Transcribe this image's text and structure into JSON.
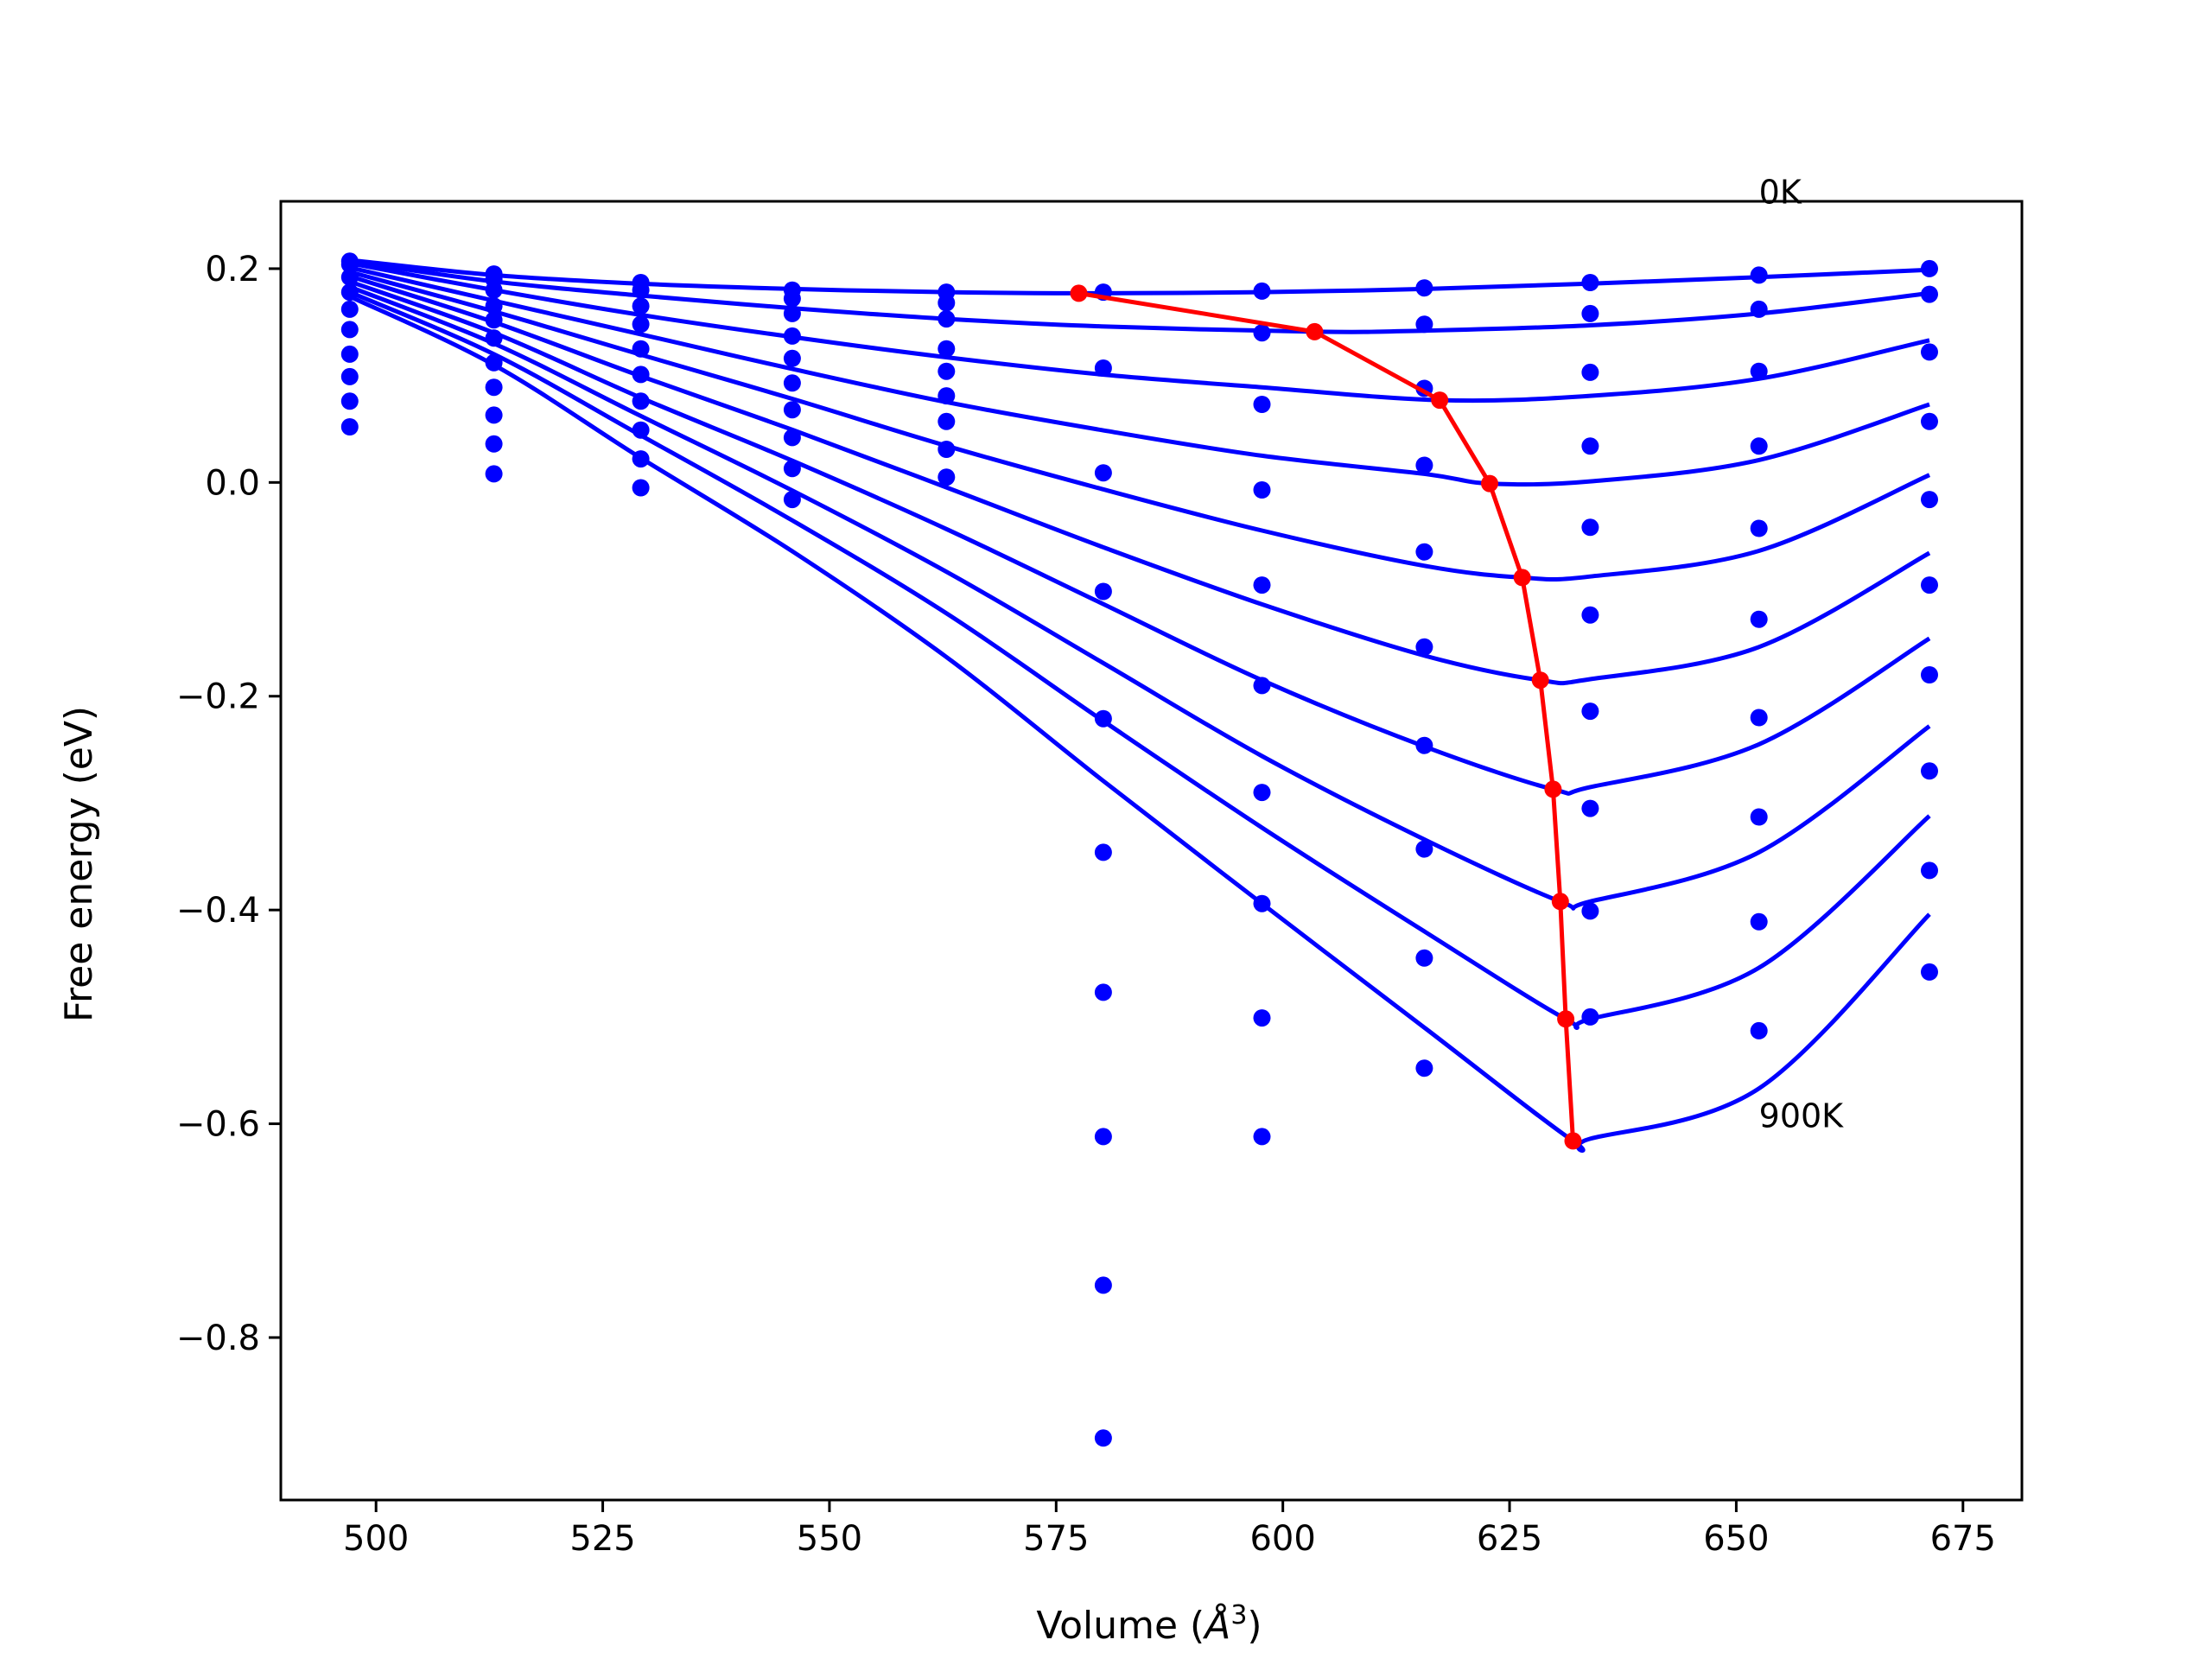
{
  "chart_data": {
    "type": "scatter",
    "title": "",
    "xlabel_prefix": "Volume (",
    "xlabel_symbol": "Å",
    "xlabel_exponent": "3",
    "xlabel_suffix": ")",
    "ylabel": "Free energy (eV)",
    "xlim": [
      489.5,
      681.5
    ],
    "ylim": [
      -0.952,
      0.263
    ],
    "xticks": [
      500,
      525,
      550,
      575,
      600,
      625,
      650,
      675
    ],
    "xtick_labels": [
      "500",
      "525",
      "550",
      "575",
      "600",
      "625",
      "650",
      "675"
    ],
    "yticks": [
      0.2,
      0.0,
      -0.2,
      -0.4,
      -0.6,
      -0.8
    ],
    "ytick_labels": [
      "0.2",
      "0.0",
      "−0.2",
      "−0.4",
      "−0.6",
      "−0.8"
    ],
    "grid": false,
    "annotations": [
      {
        "text": "0K",
        "x": 652.5,
        "y": 0.261
      },
      {
        "text": "900K",
        "x": 652.5,
        "y": -0.603
      }
    ],
    "colors": {
      "fit": "#0000ff",
      "points": "#0000ff",
      "minima": "#ff0000",
      "axes": "#000000"
    },
    "volumes": [
      497.1,
      513.0,
      529.2,
      545.9,
      562.9,
      580.2,
      597.7,
      615.6,
      633.9,
      652.5,
      671.3
    ],
    "point_series": [
      {
        "values": [
          0.207,
          0.195,
          0.187,
          0.18,
          0.178,
          0.178,
          0.179,
          0.182,
          0.187,
          0.194,
          0.2
        ]
      },
      {
        "values": [
          0.204,
          0.19,
          0.18,
          0.172,
          0.168,
          null,
          0.14,
          0.148,
          0.158,
          0.162,
          0.176
        ]
      },
      {
        "values": [
          0.192,
          0.18,
          0.165,
          0.158,
          0.153,
          0.107,
          0.073,
          0.088,
          0.103,
          0.104,
          0.122
        ]
      },
      {
        "values": [
          0.178,
          0.165,
          0.148,
          0.137,
          0.125,
          0.009,
          -0.007,
          0.016,
          0.034,
          0.034,
          0.057
        ]
      },
      {
        "values": [
          0.162,
          0.152,
          0.125,
          0.116,
          0.104,
          -0.102,
          -0.096,
          -0.065,
          -0.042,
          -0.043,
          -0.016
        ]
      },
      {
        "values": [
          0.143,
          0.135,
          0.101,
          0.093,
          0.081,
          -0.221,
          -0.19,
          -0.154,
          -0.124,
          -0.128,
          -0.096
        ]
      },
      {
        "values": [
          0.12,
          0.112,
          0.076,
          0.068,
          0.057,
          -0.346,
          -0.29,
          -0.246,
          -0.214,
          -0.22,
          -0.18
        ]
      },
      {
        "values": [
          0.099,
          0.089,
          0.049,
          0.042,
          0.031,
          -0.477,
          -0.394,
          -0.343,
          -0.305,
          -0.313,
          -0.27
        ]
      },
      {
        "values": [
          0.076,
          0.063,
          0.022,
          0.013,
          0.005,
          -0.612,
          -0.501,
          -0.445,
          -0.401,
          -0.411,
          -0.363
        ]
      },
      {
        "values": [
          0.052,
          0.036,
          -0.005,
          -0.016,
          null,
          -0.751,
          -0.612,
          -0.548,
          -0.5,
          -0.513,
          -0.458
        ]
      },
      {
        "values": [
          null,
          0.008,
          null,
          null,
          null,
          -0.894,
          null,
          null,
          null,
          null,
          null
        ]
      }
    ],
    "fit_series": [
      {
        "name": "0K",
        "points": [
          [
            497.1,
            0.208
          ],
          [
            513,
            0.194
          ],
          [
            529,
            0.186
          ],
          [
            546,
            0.181
          ],
          [
            563,
            0.178
          ],
          [
            577.5,
            0.177
          ],
          [
            597.7,
            0.178
          ],
          [
            615.6,
            0.181
          ],
          [
            633.9,
            0.186
          ],
          [
            652.5,
            0.192
          ],
          [
            671.3,
            0.199
          ]
        ]
      },
      {
        "name": "",
        "points": [
          [
            497.1,
            0.207
          ],
          [
            513,
            0.188
          ],
          [
            529,
            0.175
          ],
          [
            546,
            0.163
          ],
          [
            563,
            0.153
          ],
          [
            580,
            0.146
          ],
          [
            603.5,
            0.141
          ],
          [
            615.6,
            0.142
          ],
          [
            633.9,
            0.147
          ],
          [
            652.5,
            0.158
          ],
          [
            671.3,
            0.177
          ]
        ]
      },
      {
        "name": "",
        "points": [
          [
            497.1,
            0.205
          ],
          [
            513,
            0.18
          ],
          [
            529,
            0.157
          ],
          [
            546,
            0.136
          ],
          [
            563,
            0.117
          ],
          [
            580,
            0.101
          ],
          [
            597.7,
            0.089
          ],
          [
            617.3,
            0.077
          ],
          [
            633.9,
            0.081
          ],
          [
            652.5,
            0.097
          ],
          [
            671.3,
            0.133
          ]
        ]
      },
      {
        "name": "",
        "points": [
          [
            497.1,
            0.201
          ],
          [
            513,
            0.17
          ],
          [
            529,
            0.139
          ],
          [
            546,
            0.106
          ],
          [
            563,
            0.075
          ],
          [
            580,
            0.049
          ],
          [
            597.7,
            0.025
          ],
          [
            615.6,
            0.008
          ],
          [
            622.8,
            -0.001
          ],
          [
            633.9,
            0.001
          ],
          [
            652.5,
            0.021
          ],
          [
            671.3,
            0.073
          ]
        ]
      },
      {
        "name": "",
        "points": [
          [
            497.1,
            0.197
          ],
          [
            513,
            0.16
          ],
          [
            529,
            0.12
          ],
          [
            546,
            0.078
          ],
          [
            563,
            0.034
          ],
          [
            580,
            -0.006
          ],
          [
            597.7,
            -0.045
          ],
          [
            615.6,
            -0.078
          ],
          [
            626.4,
            -0.089
          ],
          [
            633.9,
            -0.088
          ],
          [
            652.5,
            -0.064
          ],
          [
            671.3,
            0.007
          ]
        ]
      },
      {
        "name": "",
        "points": [
          [
            497.1,
            0.193
          ],
          [
            513,
            0.15
          ],
          [
            529,
            0.1
          ],
          [
            546,
            0.049
          ],
          [
            563,
            -0.005
          ],
          [
            580,
            -0.06
          ],
          [
            597.7,
            -0.114
          ],
          [
            615.6,
            -0.162
          ],
          [
            628.4,
            -0.185
          ],
          [
            633.9,
            -0.184
          ],
          [
            652.5,
            -0.154
          ],
          [
            671.3,
            -0.066
          ]
        ]
      },
      {
        "name": "",
        "points": [
          [
            497.1,
            0.188
          ],
          [
            513,
            0.14
          ],
          [
            529,
            0.08
          ],
          [
            546,
            0.02
          ],
          [
            563,
            -0.044
          ],
          [
            580,
            -0.113
          ],
          [
            597.7,
            -0.185
          ],
          [
            615.6,
            -0.247
          ],
          [
            629.8,
            -0.287
          ],
          [
            633.9,
            -0.285
          ],
          [
            652.5,
            -0.245
          ],
          [
            671.3,
            -0.146
          ]
        ]
      },
      {
        "name": "",
        "points": [
          [
            497.1,
            0.183
          ],
          [
            513,
            0.13
          ],
          [
            529,
            0.063
          ],
          [
            546,
            -0.008
          ],
          [
            563,
            -0.084
          ],
          [
            580,
            -0.168
          ],
          [
            597.7,
            -0.256
          ],
          [
            615.6,
            -0.334
          ],
          [
            630.6,
            -0.392
          ],
          [
            633.9,
            -0.392
          ],
          [
            652.5,
            -0.346
          ],
          [
            671.3,
            -0.228
          ]
        ]
      },
      {
        "name": "",
        "points": [
          [
            497.1,
            0.178
          ],
          [
            513,
            0.12
          ],
          [
            529,
            0.045
          ],
          [
            546,
            -0.036
          ],
          [
            563,
            -0.123
          ],
          [
            580,
            -0.222
          ],
          [
            597.7,
            -0.323
          ],
          [
            615.6,
            -0.42
          ],
          [
            631.2,
            -0.502
          ],
          [
            633.9,
            -0.502
          ],
          [
            652.5,
            -0.454
          ],
          [
            671.3,
            -0.312
          ]
        ]
      },
      {
        "name": "900K",
        "points": [
          [
            497.1,
            0.174
          ],
          [
            513,
            0.11
          ],
          [
            529,
            0.024
          ],
          [
            546,
            -0.065
          ],
          [
            563,
            -0.164
          ],
          [
            580,
            -0.278
          ],
          [
            597.7,
            -0.394
          ],
          [
            615.6,
            -0.51
          ],
          [
            632.0,
            -0.616
          ],
          [
            633.9,
            -0.614
          ],
          [
            652.5,
            -0.567
          ],
          [
            671.3,
            -0.404
          ]
        ]
      }
    ],
    "minima_series": {
      "x": [
        577.5,
        603.5,
        617.3,
        622.8,
        626.4,
        628.4,
        629.8,
        630.6,
        631.2,
        632.0
      ],
      "y": [
        0.177,
        0.141,
        0.077,
        -0.001,
        -0.089,
        -0.185,
        -0.287,
        -0.392,
        -0.502,
        -0.616
      ]
    }
  }
}
